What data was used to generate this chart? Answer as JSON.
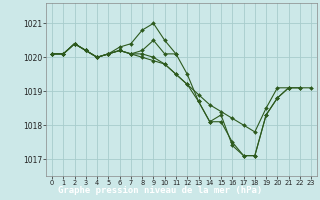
{
  "title": "Graphe pression niveau de la mer (hPa)",
  "bg_color": "#cce8e8",
  "plot_bg_color": "#cce8e8",
  "label_bg_color": "#2d6a2d",
  "label_text_color": "#ffffff",
  "line_color": "#2d5a1e",
  "grid_color": "#a8cccc",
  "ylim": [
    1016.5,
    1021.6
  ],
  "xlim": [
    -0.5,
    23.5
  ],
  "yticks": [
    1017,
    1018,
    1019,
    1020,
    1021
  ],
  "xticks": [
    0,
    1,
    2,
    3,
    4,
    5,
    6,
    7,
    8,
    9,
    10,
    11,
    12,
    13,
    14,
    15,
    16,
    17,
    18,
    19,
    20,
    21,
    22,
    23
  ],
  "series": [
    [
      1020.1,
      1020.1,
      1020.4,
      1020.2,
      1020.0,
      1020.1,
      1020.2,
      1020.1,
      1020.2,
      1020.5,
      1020.1,
      1020.1,
      null,
      null,
      null,
      null,
      null,
      null,
      null,
      null,
      null,
      null,
      null,
      null
    ],
    [
      1020.1,
      1020.1,
      1020.4,
      1020.2,
      1020.0,
      1020.1,
      1020.3,
      1020.4,
      1020.8,
      1021.0,
      1020.5,
      1020.1,
      1019.5,
      1018.7,
      1018.1,
      1018.3,
      1017.4,
      1017.1,
      1017.1,
      1018.3,
      1018.8,
      1019.1,
      1019.1,
      null
    ],
    [
      1020.1,
      1020.1,
      1020.4,
      1020.2,
      1020.0,
      1020.1,
      1020.2,
      1020.1,
      1020.1,
      1020.0,
      1019.8,
      1019.5,
      1019.2,
      1018.9,
      1018.6,
      1018.4,
      1018.2,
      1018.0,
      1017.8,
      1018.5,
      1019.1,
      1019.1,
      null,
      null
    ],
    [
      1020.1,
      1020.1,
      1020.4,
      1020.2,
      1020.0,
      1020.1,
      1020.2,
      1020.1,
      1020.0,
      1019.9,
      1019.8,
      1019.5,
      1019.2,
      1018.7,
      1018.1,
      1018.1,
      1017.5,
      1017.1,
      1017.1,
      1018.3,
      1018.8,
      1019.1,
      1019.1,
      1019.1
    ]
  ]
}
